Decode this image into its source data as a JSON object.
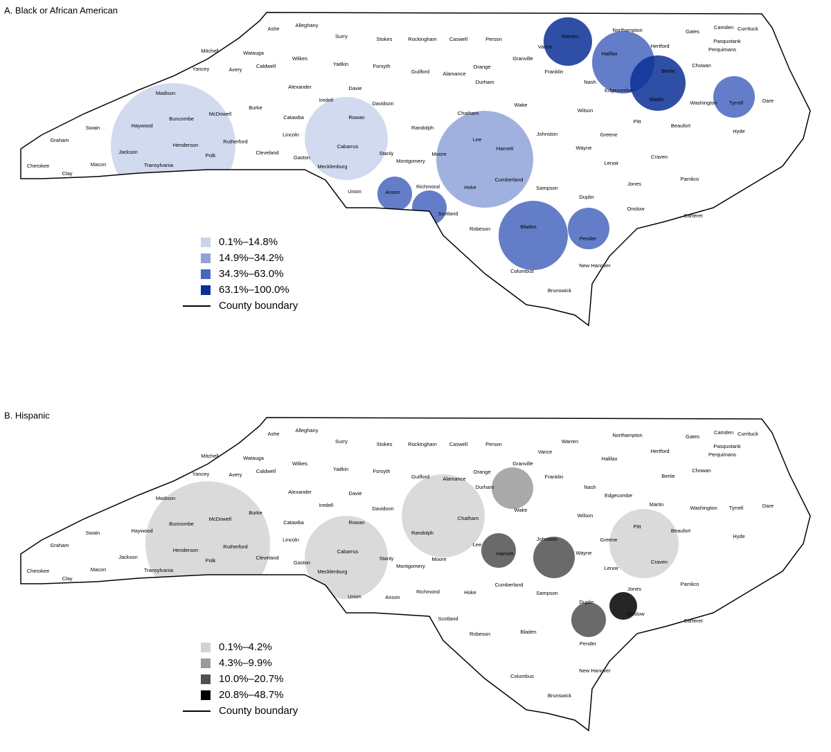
{
  "panels": [
    {
      "title": "A. Black or African American",
      "legend": [
        "0.1%–14.8%",
        "14.9%–34.2%",
        "34.3%–63.0%",
        "63.1%–100.0%"
      ],
      "colors": [
        "#c9d3ec",
        "#8fa3da",
        "#4866c0",
        "#0a2f96"
      ],
      "boundary": "County boundary"
    },
    {
      "title": "B. Hispanic",
      "legend": [
        "0.1%–4.2%",
        "4.3%–9.9%",
        "10.0%–20.7%",
        "20.8%–48.7%"
      ],
      "colors": [
        "#d3d3d3",
        "#9a9a9a",
        "#505050",
        "#000000"
      ],
      "boundary": "County boundary"
    }
  ],
  "counties": [
    "Ashe",
    "Alleghany",
    "Surry",
    "Stokes",
    "Rockingham",
    "Caswell",
    "Person",
    "Warren",
    "Northampton",
    "Gates",
    "Camden",
    "Currituck",
    "Pasquotank",
    "Perquimans",
    "Hertford",
    "Vance",
    "Granville",
    "Halifax",
    "Watauga",
    "Wilkes",
    "Yadkin",
    "Forsyth",
    "Guilford",
    "Alamance",
    "Orange",
    "Durham",
    "Franklin",
    "Bertie",
    "Chowan",
    "Mitchell",
    "Avery",
    "Yancey",
    "Caldwell",
    "Alexander",
    "Davie",
    "Nash",
    "Madison",
    "Iredell",
    "Davidson",
    "Randolph",
    "Chatham",
    "Wake",
    "Edgecombe",
    "Martin",
    "Washington",
    "Tyrrell",
    "Dare",
    "Burke",
    "Catawba",
    "Rowan",
    "Wilson",
    "McDowell",
    "Buncombe",
    "Haywood",
    "Swain",
    "Graham",
    "Lincoln",
    "Cabarrus",
    "Stanly",
    "Montgomery",
    "Moore",
    "Lee",
    "Harnett",
    "Johnston",
    "Wayne",
    "Greene",
    "Pitt",
    "Beaufort",
    "Hyde",
    "Henderson",
    "Rutherford",
    "Cleveland",
    "Gaston",
    "Polk",
    "Transylvania",
    "Jackson",
    "Macon",
    "Clay",
    "Cherokee",
    "Mecklenburg",
    "Union",
    "Anson",
    "Richmond",
    "Hoke",
    "Cumberland",
    "Sampson",
    "Duplin",
    "Lenoir",
    "Craven",
    "Pamlico",
    "Jones",
    "Onslow",
    "Carteret",
    "Scotland",
    "Robeson",
    "Bladen",
    "Pender",
    "New Hanover",
    "Columbus",
    "Brunswick"
  ]
}
